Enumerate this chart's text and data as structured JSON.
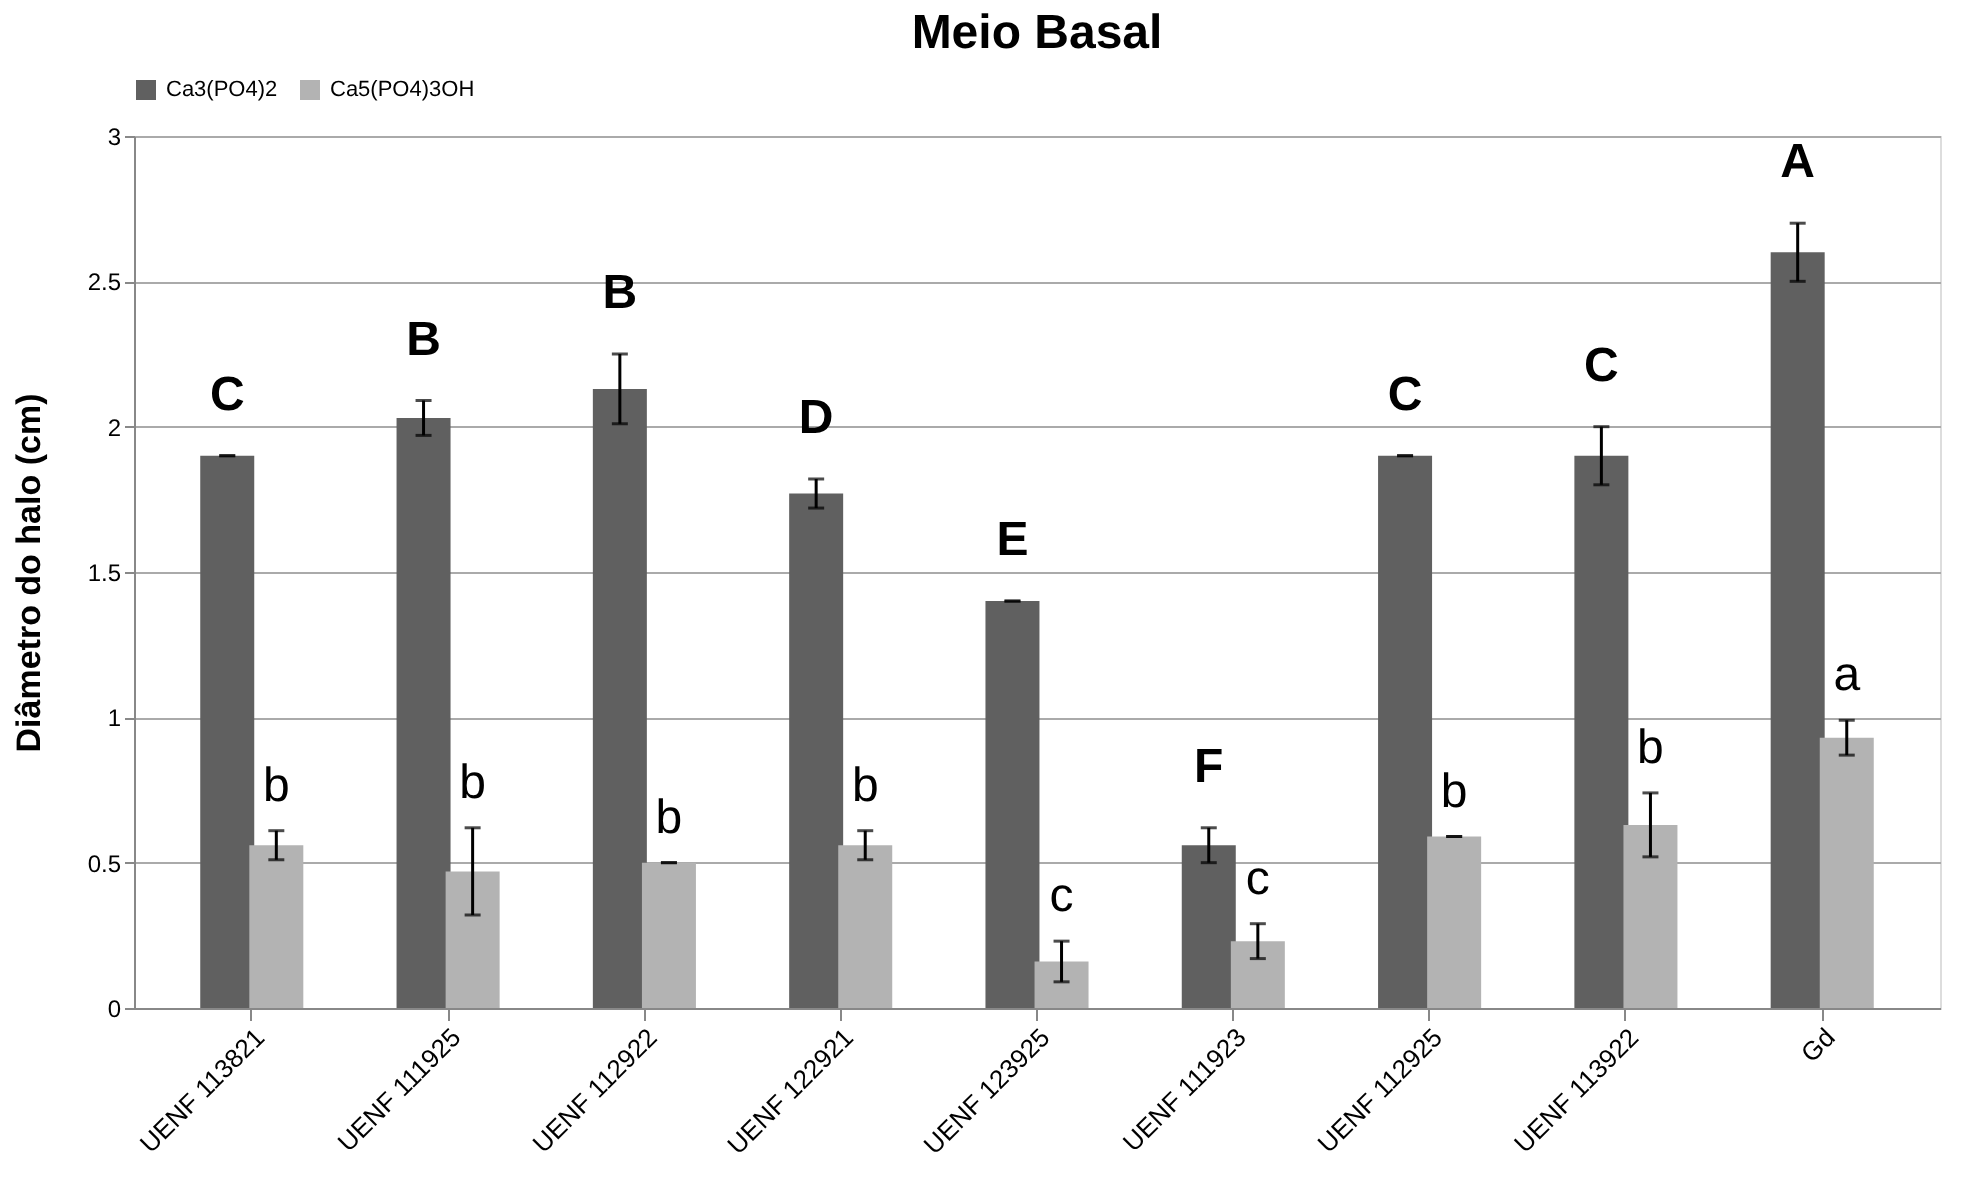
{
  "chart_data": {
    "type": "bar",
    "title": "Meio Basal",
    "ylabel": "Diâmetro do halo (cm)",
    "categories": [
      "UENF 113821",
      "UENF 111925",
      "UENF 112922",
      "UENF 122921",
      "UENF 123925",
      "UENF 111923",
      "UENF 112925",
      "UENF 113922",
      "Gd"
    ],
    "series": [
      {
        "name": "Ca3(PO4)2",
        "color": "#606060",
        "values": [
          1.9,
          2.03,
          2.13,
          1.77,
          1.4,
          0.56,
          1.9,
          1.9,
          2.6
        ],
        "errors": [
          0,
          0.06,
          0.12,
          0.05,
          0,
          0.06,
          0,
          0.1,
          0.1
        ],
        "value_labels": [
          "C",
          "B",
          "B",
          "D",
          "E",
          "F",
          "C",
          "C",
          "A"
        ]
      },
      {
        "name": "Ca5(PO4)3OH",
        "color": "#b3b3b3",
        "values": [
          0.56,
          0.47,
          0.5,
          0.56,
          0.16,
          0.23,
          0.59,
          0.63,
          0.93
        ],
        "errors": [
          0.05,
          0.15,
          0,
          0.05,
          0.07,
          0.06,
          0,
          0.11,
          0.06
        ],
        "value_labels": [
          "b",
          "b",
          "b",
          "b",
          "c",
          "c",
          "b",
          "b",
          "a"
        ]
      }
    ],
    "ylim": [
      0,
      3
    ],
    "yticks": [
      0,
      0.5,
      1,
      1.5,
      2,
      2.5,
      3
    ],
    "grid": "y",
    "legend": "top"
  }
}
